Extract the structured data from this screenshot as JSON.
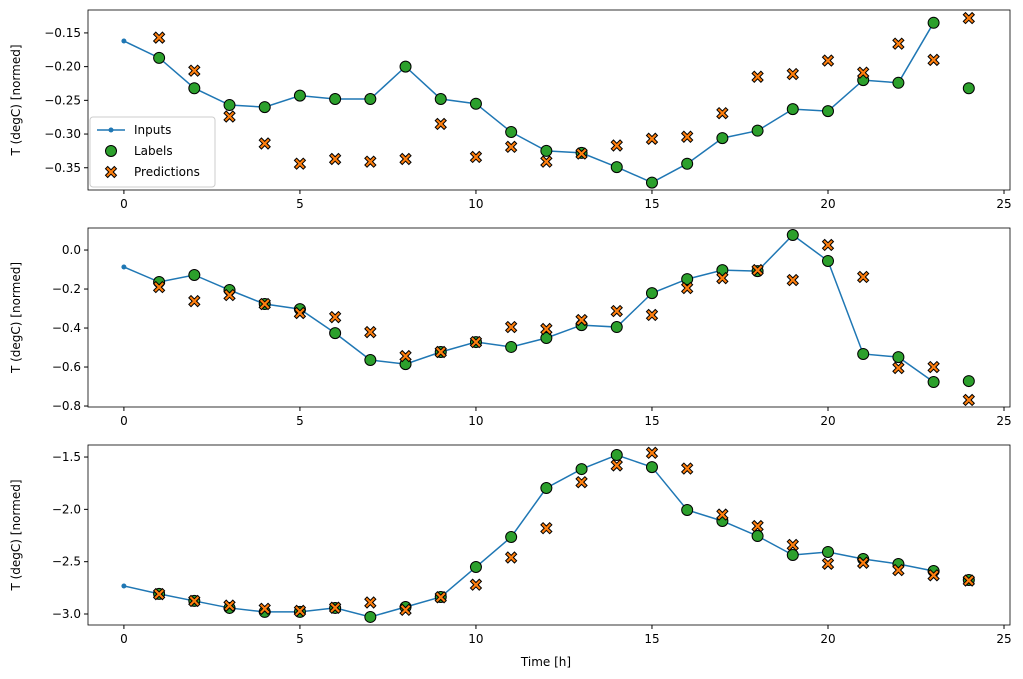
{
  "chart_data": {
    "type": "line",
    "xlabel": "Time [h]",
    "colors": {
      "inputs": "#1f77b4",
      "labels": "#2ca02c",
      "predictions": "#ff7f0e"
    },
    "legend": {
      "placement": "lower-left",
      "entries": [
        "Inputs",
        "Labels",
        "Predictions"
      ]
    },
    "xticks": [
      0,
      5,
      10,
      15,
      20,
      25
    ],
    "xlim": [
      -1.02,
      25.17
    ],
    "subplots": [
      {
        "ylabel": "T (degC) [normed]",
        "ylim": [
          -0.383,
          -0.116
        ],
        "yticks": [
          -0.35,
          -0.3,
          -0.25,
          -0.2,
          -0.15
        ],
        "ytick_labels": [
          "−0.35",
          "−0.30",
          "−0.25",
          "−0.20",
          "−0.15"
        ],
        "inputs": {
          "x": [
            0,
            1,
            2,
            3,
            4,
            5,
            6,
            7,
            8,
            9,
            10,
            11,
            12,
            13,
            14,
            15,
            16,
            17,
            18,
            19,
            20,
            21,
            22,
            23
          ],
          "y": [
            -0.162,
            -0.187,
            -0.232,
            -0.257,
            -0.26,
            -0.243,
            -0.248,
            -0.248,
            -0.2,
            -0.248,
            -0.255,
            -0.297,
            -0.325,
            -0.328,
            -0.349,
            -0.372,
            -0.344,
            -0.306,
            -0.295,
            -0.263,
            -0.266,
            -0.22,
            -0.224,
            -0.135
          ]
        },
        "labels": {
          "x": [
            1,
            2,
            3,
            4,
            5,
            6,
            7,
            8,
            9,
            10,
            11,
            12,
            13,
            14,
            15,
            16,
            17,
            18,
            19,
            20,
            21,
            22,
            23,
            24
          ],
          "y": [
            -0.187,
            -0.232,
            -0.257,
            -0.26,
            -0.243,
            -0.248,
            -0.248,
            -0.2,
            -0.248,
            -0.255,
            -0.297,
            -0.325,
            -0.328,
            -0.349,
            -0.372,
            -0.344,
            -0.306,
            -0.295,
            -0.263,
            -0.266,
            -0.22,
            -0.224,
            -0.135,
            -0.232
          ]
        },
        "predictions": {
          "x": [
            1,
            2,
            3,
            4,
            5,
            6,
            7,
            8,
            9,
            10,
            11,
            12,
            13,
            14,
            15,
            16,
            17,
            18,
            19,
            20,
            21,
            22,
            23,
            24
          ],
          "y": [
            -0.157,
            -0.206,
            -0.274,
            -0.314,
            -0.344,
            -0.337,
            -0.341,
            -0.337,
            -0.285,
            -0.334,
            -0.319,
            -0.341,
            -0.329,
            -0.317,
            -0.307,
            -0.304,
            -0.269,
            -0.215,
            -0.211,
            -0.191,
            -0.209,
            -0.166,
            -0.19,
            -0.128
          ]
        }
      },
      {
        "ylabel": "T (degC) [normed]",
        "ylim": [
          -0.805,
          0.113
        ],
        "yticks": [
          -0.8,
          -0.6,
          -0.4,
          -0.2,
          0.0
        ],
        "ytick_labels": [
          "−0.8",
          "−0.6",
          "−0.4",
          "−0.2",
          "0.0"
        ],
        "inputs": {
          "x": [
            0,
            1,
            2,
            3,
            4,
            5,
            6,
            7,
            8,
            9,
            10,
            11,
            12,
            13,
            14,
            15,
            16,
            17,
            18,
            19,
            20,
            21,
            22,
            23
          ],
          "y": [
            -0.087,
            -0.164,
            -0.128,
            -0.205,
            -0.277,
            -0.303,
            -0.426,
            -0.564,
            -0.585,
            -0.523,
            -0.472,
            -0.497,
            -0.451,
            -0.385,
            -0.395,
            -0.221,
            -0.149,
            -0.103,
            -0.108,
            0.077,
            -0.056,
            -0.533,
            -0.549,
            -0.677
          ]
        },
        "labels": {
          "x": [
            1,
            2,
            3,
            4,
            5,
            6,
            7,
            8,
            9,
            10,
            11,
            12,
            13,
            14,
            15,
            16,
            17,
            18,
            19,
            20,
            21,
            22,
            23,
            24
          ],
          "y": [
            -0.164,
            -0.128,
            -0.205,
            -0.277,
            -0.303,
            -0.426,
            -0.564,
            -0.585,
            -0.523,
            -0.472,
            -0.497,
            -0.451,
            -0.385,
            -0.395,
            -0.221,
            -0.149,
            -0.103,
            -0.108,
            0.077,
            -0.056,
            -0.533,
            -0.549,
            -0.677,
            -0.672
          ]
        },
        "predictions": {
          "x": [
            1,
            2,
            3,
            4,
            5,
            6,
            7,
            8,
            9,
            10,
            11,
            12,
            13,
            14,
            15,
            16,
            17,
            18,
            19,
            20,
            21,
            22,
            23,
            24
          ],
          "y": [
            -0.19,
            -0.262,
            -0.231,
            -0.277,
            -0.323,
            -0.344,
            -0.421,
            -0.544,
            -0.523,
            -0.472,
            -0.395,
            -0.405,
            -0.359,
            -0.313,
            -0.333,
            -0.195,
            -0.144,
            -0.103,
            -0.154,
            0.026,
            -0.138,
            -0.605,
            -0.6,
            -0.769
          ]
        }
      },
      {
        "ylabel": "T (degC) [normed]",
        "ylim": [
          -3.105,
          -1.385
        ],
        "yticks": [
          -3.0,
          -2.5,
          -2.0,
          -1.5
        ],
        "ytick_labels": [
          "−3.0",
          "−2.5",
          "−2.0",
          "−1.5"
        ],
        "inputs": {
          "x": [
            0,
            1,
            2,
            3,
            4,
            5,
            6,
            7,
            8,
            9,
            10,
            11,
            12,
            13,
            14,
            15,
            16,
            17,
            18,
            19,
            20,
            21,
            22,
            23
          ],
          "y": [
            -2.732,
            -2.808,
            -2.875,
            -2.942,
            -2.98,
            -2.98,
            -2.942,
            -3.028,
            -2.933,
            -2.837,
            -2.551,
            -2.264,
            -1.796,
            -1.615,
            -1.481,
            -1.596,
            -2.006,
            -2.111,
            -2.255,
            -2.436,
            -2.407,
            -2.474,
            -2.522,
            -2.589
          ]
        },
        "labels": {
          "x": [
            1,
            2,
            3,
            4,
            5,
            6,
            7,
            8,
            9,
            10,
            11,
            12,
            13,
            14,
            15,
            16,
            17,
            18,
            19,
            20,
            21,
            22,
            23,
            24
          ],
          "y": [
            -2.808,
            -2.875,
            -2.942,
            -2.98,
            -2.98,
            -2.942,
            -3.028,
            -2.933,
            -2.837,
            -2.551,
            -2.264,
            -1.796,
            -1.615,
            -1.481,
            -1.596,
            -2.006,
            -2.111,
            -2.255,
            -2.436,
            -2.407,
            -2.474,
            -2.522,
            -2.589,
            -2.675
          ]
        },
        "predictions": {
          "x": [
            1,
            2,
            3,
            4,
            5,
            6,
            7,
            8,
            9,
            10,
            11,
            12,
            13,
            14,
            15,
            16,
            17,
            18,
            19,
            20,
            21,
            22,
            23,
            24
          ],
          "y": [
            -2.81,
            -2.875,
            -2.92,
            -2.95,
            -2.97,
            -2.94,
            -2.89,
            -2.96,
            -2.84,
            -2.72,
            -2.46,
            -2.18,
            -1.74,
            -1.58,
            -1.46,
            -1.61,
            -2.05,
            -2.16,
            -2.34,
            -2.52,
            -2.51,
            -2.58,
            -2.63,
            -2.68
          ]
        }
      }
    ]
  }
}
